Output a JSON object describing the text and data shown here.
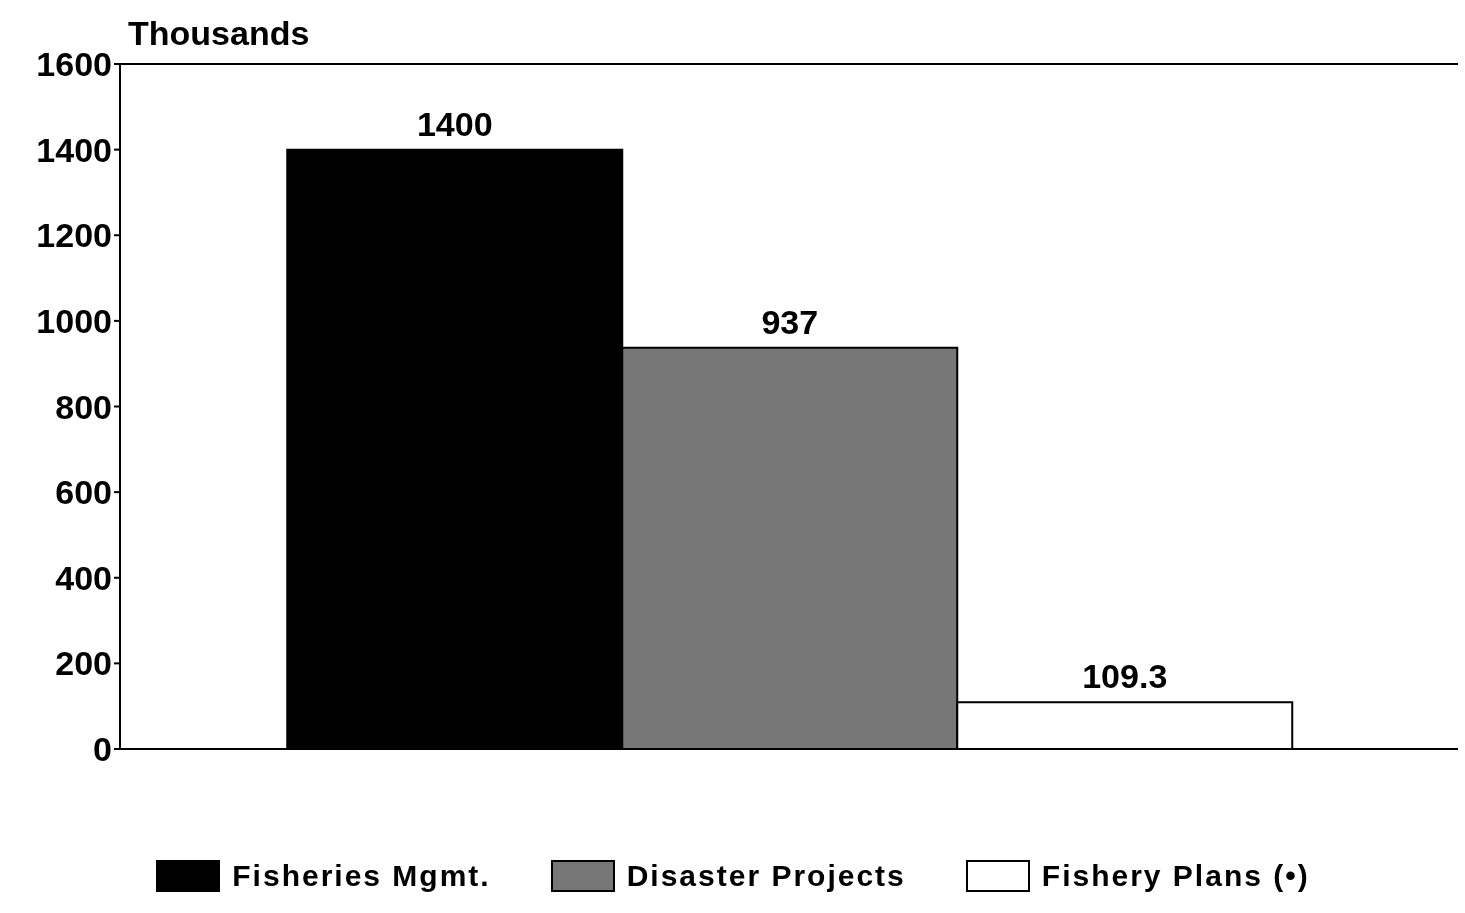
{
  "chart_data": {
    "type": "bar",
    "ylabel": "Thousands",
    "categories": [
      null
    ],
    "series": [
      {
        "name": "Fisheries Mgmt.",
        "color": "#000000",
        "values": [
          1400
        ]
      },
      {
        "name": "Disaster Projects",
        "color": "#777777",
        "values": [
          937
        ]
      },
      {
        "name": "Fishery Plans (•)",
        "color": "#ffffff",
        "values": [
          109.3
        ]
      }
    ],
    "ylim": [
      0,
      1600
    ],
    "yticks": [
      0,
      200,
      400,
      600,
      800,
      1000,
      1200,
      1400,
      1600
    ],
    "data_labels": true,
    "legend": "bottom",
    "grid": false,
    "tick_labels": "y"
  }
}
